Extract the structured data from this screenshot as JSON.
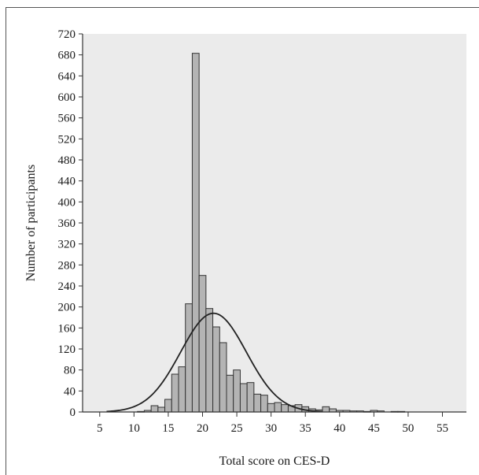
{
  "chart_data": {
    "type": "bar",
    "title": "",
    "xlabel": "Total score on CES-D",
    "ylabel": "Number of participants",
    "xlim": [
      2.5,
      58.5
    ],
    "ylim": [
      0,
      720
    ],
    "x_ticks": [
      5,
      10,
      15,
      20,
      25,
      30,
      35,
      40,
      45,
      50,
      55
    ],
    "y_ticks": [
      0,
      40,
      80,
      120,
      160,
      200,
      240,
      280,
      320,
      360,
      400,
      440,
      480,
      520,
      560,
      600,
      640,
      680,
      720
    ],
    "bin_width": 1,
    "bars": {
      "x": [
        11,
        12,
        13,
        14,
        15,
        16,
        17,
        18,
        19,
        20,
        21,
        22,
        23,
        24,
        25,
        26,
        27,
        28,
        29,
        30,
        31,
        32,
        33,
        34,
        35,
        36,
        37,
        38,
        39,
        40,
        41,
        42,
        43,
        44,
        45,
        46,
        48,
        49
      ],
      "values": [
        1,
        3,
        12,
        9,
        24,
        72,
        86,
        206,
        683,
        260,
        197,
        162,
        132,
        70,
        80,
        54,
        56,
        34,
        32,
        16,
        18,
        14,
        12,
        14,
        10,
        6,
        4,
        10,
        6,
        3,
        3,
        2,
        2,
        1,
        3,
        2,
        1,
        1
      ]
    },
    "normal_curve": {
      "mean": 21.6,
      "sd": 4.8,
      "peak": 188
    },
    "grid": false,
    "legend": "none",
    "colors": {
      "background": "#ebebeb",
      "bar_fill": "#b4b4b4",
      "bar_stroke": "#333333",
      "curve": "#222222"
    }
  }
}
